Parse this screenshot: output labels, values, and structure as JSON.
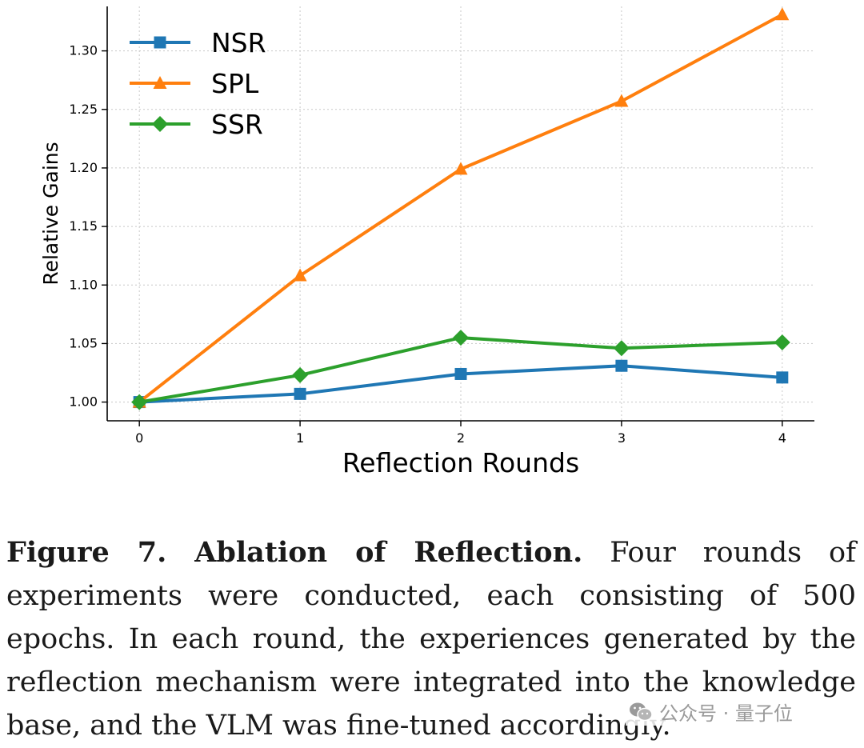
{
  "chart_data": {
    "type": "line",
    "xlabel": "Reflection Rounds",
    "ylabel": "Relative Gains",
    "x": [
      0,
      1,
      2,
      3,
      4
    ],
    "xlim": [
      -0.2,
      4.2
    ],
    "ylim": [
      0.984,
      1.338
    ],
    "yticks": [
      1.0,
      1.05,
      1.1,
      1.15,
      1.2,
      1.25,
      1.3
    ],
    "ytick_labels": [
      "1.00",
      "1.05",
      "1.10",
      "1.15",
      "1.20",
      "1.25",
      "1.30"
    ],
    "xtick_labels": [
      "0",
      "1",
      "2",
      "3",
      "4"
    ],
    "grid": true,
    "legend_position": "top-left",
    "series": [
      {
        "name": "NSR",
        "color": "#1f77b4",
        "marker": "square",
        "values": [
          1.0,
          1.007,
          1.024,
          1.031,
          1.021
        ]
      },
      {
        "name": "SPL",
        "color": "#ff7f0e",
        "marker": "triangle",
        "values": [
          1.0,
          1.108,
          1.199,
          1.257,
          1.331
        ]
      },
      {
        "name": "SSR",
        "color": "#2ca02c",
        "marker": "diamond",
        "values": [
          1.0,
          1.023,
          1.055,
          1.046,
          1.051
        ]
      }
    ]
  },
  "caption": {
    "label": "Figure 7. Ablation of Reflection.",
    "text": "Four rounds of experiments were conducted, each consisting of 500 epochs. In each round, the experiences generated by the reflection mechanism were integrated into the knowledge base, and the VLM was fine-tuned accordingly."
  },
  "watermark": {
    "text": "公众号 · 量子位",
    "icon": "wechat-icon"
  }
}
